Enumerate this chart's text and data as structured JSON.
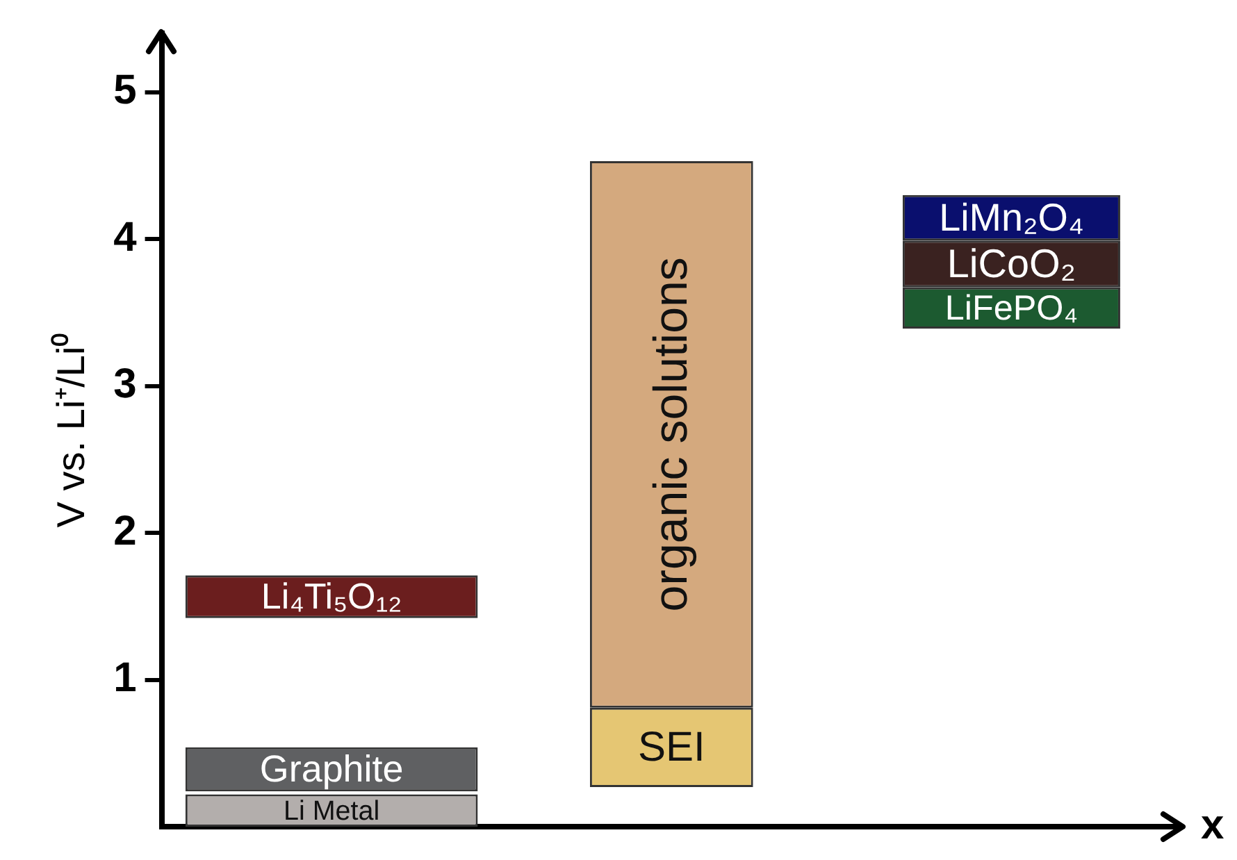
{
  "chart_data": {
    "type": "bar",
    "xlabel": "x",
    "ylabel": "V vs. Li⁺/Li⁰",
    "categories": [
      null,
      null,
      null
    ],
    "ylim": [
      0,
      5.4
    ],
    "yticks": [
      1,
      2,
      3,
      4,
      5
    ],
    "grid": false,
    "legend": false,
    "tick_labels": "y",
    "series": [
      {
        "name": "Li Metal",
        "color": "#b3aeac",
        "values": [
          0.22,
          null,
          null
        ],
        "base": [
          0,
          null,
          null
        ]
      },
      {
        "name": "Graphite",
        "color": "#5f6062",
        "values": [
          0.3,
          null,
          null
        ],
        "base": [
          0.24,
          null,
          null
        ]
      },
      {
        "name": "Li₄Ti₅O₁₂",
        "color": "#6b1e1e",
        "values": [
          0.29,
          null,
          null
        ],
        "base": [
          1.42,
          null,
          null
        ]
      },
      {
        "name": "SEI",
        "color": "#e5c673",
        "values": [
          null,
          0.54,
          null
        ],
        "base": [
          null,
          0.27,
          null
        ]
      },
      {
        "name": "organic solutions",
        "color": "#d4a97e",
        "values": [
          null,
          3.72,
          null
        ],
        "base": [
          null,
          0.81,
          null
        ]
      },
      {
        "name": "LiFePO₄",
        "color": "#1c5a30",
        "values": [
          null,
          null,
          0.28
        ],
        "base": [
          null,
          null,
          3.39
        ]
      },
      {
        "name": "LiCoO₂",
        "color": "#3a2220",
        "values": [
          null,
          null,
          0.32
        ],
        "base": [
          null,
          null,
          3.67
        ]
      },
      {
        "name": "LiMn₂O₄",
        "color": "#0a0f6e",
        "values": [
          null,
          null,
          0.31
        ],
        "base": [
          null,
          null,
          3.99
        ]
      }
    ]
  }
}
